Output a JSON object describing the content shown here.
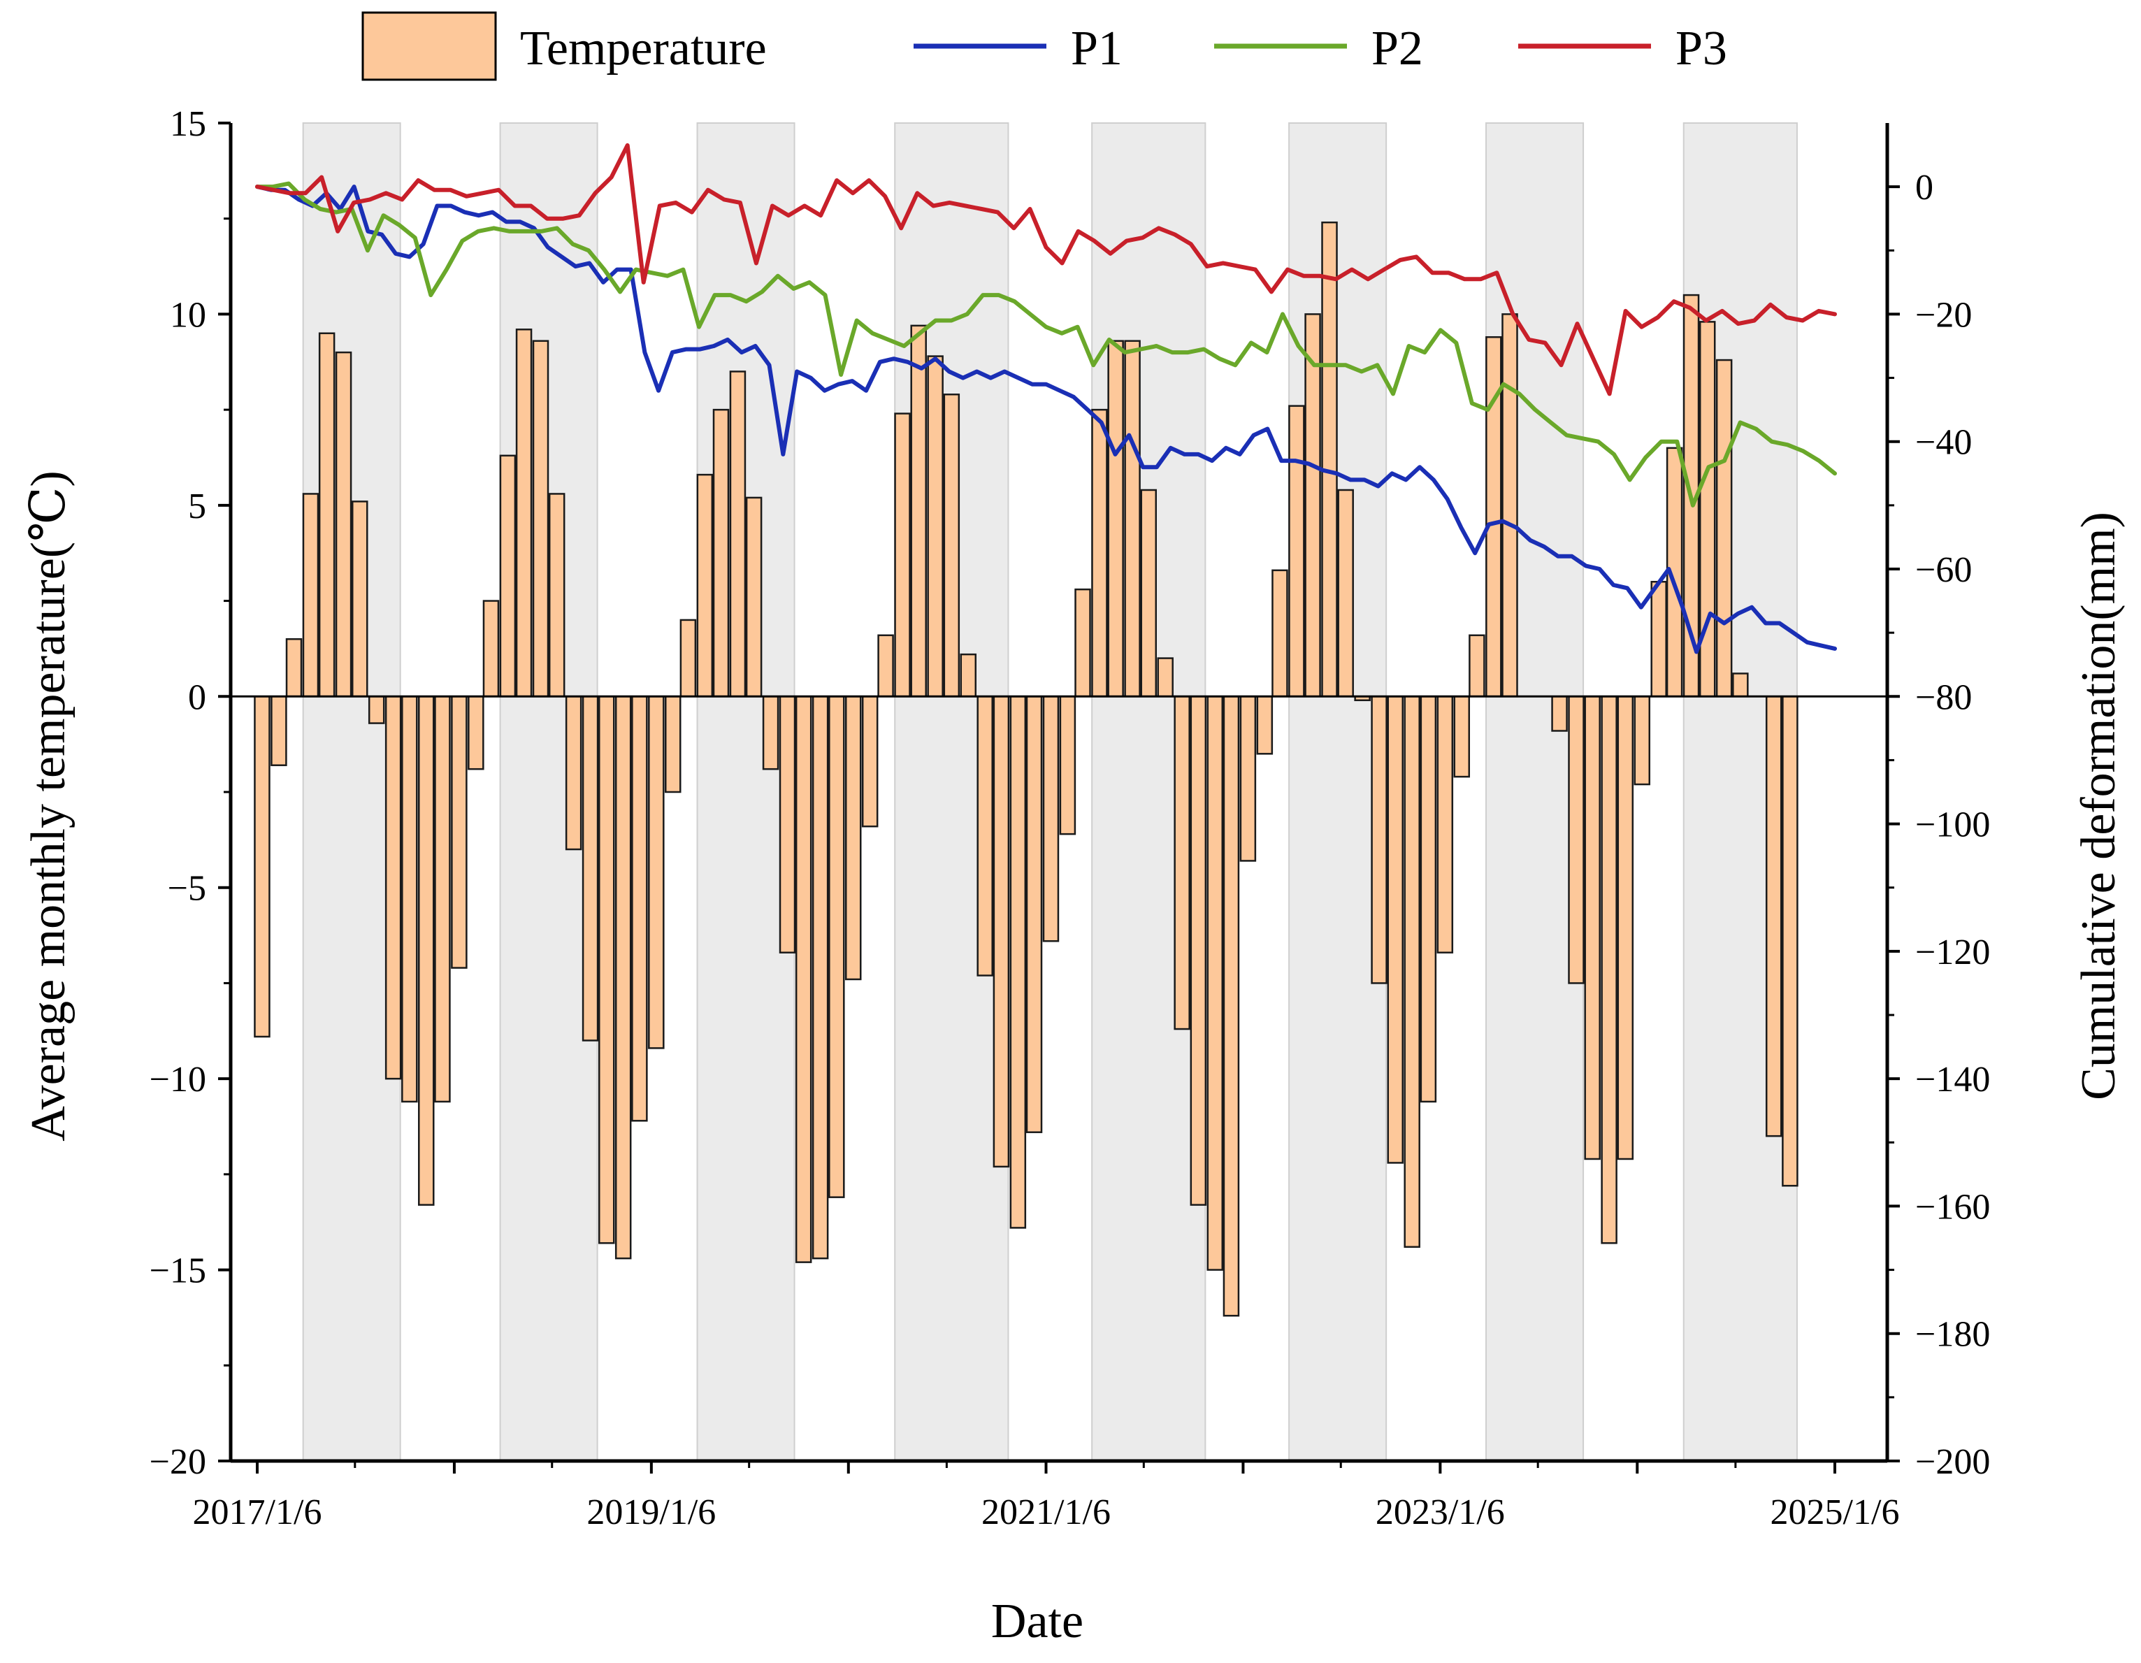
{
  "chart_data": {
    "type": "bar+line",
    "title": "",
    "xlabel": "Date",
    "ylabel_left": "Average monthly temperature(℃)",
    "ylabel_right": "Cumulative deformation(mm)",
    "ylim_left": [
      -20,
      15
    ],
    "ylim_right": [
      -200,
      10
    ],
    "yticks_left": [
      15,
      10,
      5,
      0,
      -5,
      -10,
      -15,
      -20
    ],
    "yticks_right": [
      0,
      -20,
      -40,
      -60,
      -80,
      -100,
      -120,
      -140,
      -160,
      -180,
      -200
    ],
    "x_start": "2017-01-06",
    "x_end": "2025-01-06",
    "x_tick_labels": [
      "2017/1/6",
      "2019/1/6",
      "2021/1/6",
      "2023/1/6",
      "2025/1/6"
    ],
    "warm_season_bands": [
      [
        "2017-04",
        "2017-09"
      ],
      [
        "2018-04",
        "2018-09"
      ],
      [
        "2019-04",
        "2019-09"
      ],
      [
        "2020-04",
        "2020-10"
      ],
      [
        "2021-04",
        "2021-10"
      ],
      [
        "2022-04",
        "2022-09"
      ],
      [
        "2023-04",
        "2023-09"
      ],
      [
        "2024-04",
        "2024-10"
      ]
    ],
    "legend": [
      "Temperature",
      "P1",
      "P2",
      "P3"
    ],
    "legend_position": "top",
    "temperature_series": {
      "name": "Temperature",
      "months": [
        "2017-01",
        "2017-02",
        "2017-03",
        "2017-04",
        "2017-05",
        "2017-06",
        "2017-07",
        "2017-08",
        "2017-09",
        "2017-10",
        "2017-11",
        "2017-12",
        "2018-01",
        "2018-02",
        "2018-03",
        "2018-04",
        "2018-05",
        "2018-06",
        "2018-07",
        "2018-08",
        "2018-09",
        "2018-10",
        "2018-11",
        "2018-12",
        "2019-01",
        "2019-02",
        "2019-03",
        "2019-04",
        "2019-05",
        "2019-06",
        "2019-07",
        "2019-08",
        "2019-09",
        "2019-10",
        "2019-11",
        "2019-12",
        "2020-01",
        "2020-02",
        "2020-03",
        "2020-04",
        "2020-05",
        "2020-06",
        "2020-07",
        "2020-08",
        "2020-09",
        "2020-10",
        "2020-11",
        "2020-12",
        "2021-01",
        "2021-02",
        "2021-03",
        "2021-04",
        "2021-05",
        "2021-06",
        "2021-07",
        "2021-08",
        "2021-09",
        "2021-10",
        "2021-11",
        "2021-12",
        "2022-01",
        "2022-02",
        "2022-03",
        "2022-04",
        "2022-05",
        "2022-06",
        "2022-07",
        "2022-08",
        "2022-09",
        "2022-10",
        "2022-11",
        "2022-12",
        "2023-01",
        "2023-02",
        "2023-03",
        "2023-04",
        "2023-05",
        "2023-06",
        "2023-07",
        "2023-08",
        "2023-09",
        "2023-10",
        "2023-11",
        "2023-12",
        "2024-01",
        "2024-02",
        "2024-03",
        "2024-04",
        "2024-05",
        "2024-06",
        "2024-07",
        "2024-08",
        "2024-09",
        "2024-10",
        "2024-11",
        "2024-12"
      ],
      "values": [
        -8.9,
        -1.8,
        1.5,
        5.3,
        9.5,
        9.0,
        5.1,
        -0.7,
        -10.0,
        -10.6,
        -13.3,
        -10.6,
        -7.1,
        -1.9,
        2.5,
        6.3,
        9.6,
        9.3,
        5.3,
        -4.0,
        -9.0,
        -14.3,
        -14.7,
        -11.1,
        -9.2,
        -2.5,
        2.0,
        5.8,
        7.5,
        8.5,
        5.2,
        -1.9,
        -6.7,
        -14.8,
        -14.7,
        -13.1,
        -7.4,
        -3.4,
        1.6,
        7.4,
        9.7,
        8.9,
        7.9,
        1.1,
        -7.3,
        -12.3,
        -13.9,
        -11.4,
        -6.4,
        -3.6,
        2.8,
        7.5,
        9.3,
        9.3,
        5.4,
        1.0,
        -8.7,
        -13.3,
        -15.0,
        -16.2,
        -4.3,
        -1.5,
        3.3,
        7.6,
        10.0,
        12.4,
        5.4,
        -0.1,
        -7.5,
        -12.2,
        -14.4,
        -10.6,
        -6.7,
        -2.1,
        1.6,
        9.4,
        10.0,
        null,
        null,
        -0.9,
        -7.5,
        -12.1,
        -14.3,
        -12.1,
        -2.3,
        3.0,
        6.5,
        10.5,
        9.8,
        8.8,
        0.6,
        null,
        -11.5,
        -12.8,
        null,
        null
      ]
    },
    "deformation_series": [
      {
        "name": "P1",
        "color": "#1a2fb5",
        "values": [
          0,
          -0.5,
          -0.5,
          -2,
          -3,
          -1,
          -3.5,
          0,
          -7,
          -7.5,
          -10.5,
          -11,
          -9,
          -3,
          -3,
          -4,
          -4.5,
          -4,
          -5.5,
          -5.5,
          -6.5,
          -9.5,
          -11,
          -12.5,
          -12,
          -15,
          -13,
          -13,
          -26,
          -32,
          -26,
          -25.5,
          -25.5,
          -25,
          -24,
          -26,
          -25,
          -28,
          -42,
          -29,
          -30,
          -32,
          -31,
          -30.5,
          -32,
          -27.5,
          -27,
          -27.5,
          -28.5,
          -27,
          -29,
          -30,
          -29,
          -30,
          -29,
          -30,
          -31,
          -31,
          -32,
          -33,
          -35,
          -37,
          -42,
          -39,
          -44,
          -44,
          -41,
          -42,
          -42,
          -43,
          -41,
          -42,
          -39,
          -38,
          -43,
          -43,
          -43.5,
          -44.5,
          -45,
          -46,
          -46,
          -47,
          -45,
          -46,
          -44,
          -46,
          -49,
          -53.5,
          -57.5,
          -53,
          -52.5,
          -53.5,
          -55.5,
          -56.5,
          -58,
          -58,
          -59.5,
          -60,
          -62.5,
          -63,
          -66,
          -63,
          -60,
          -66,
          -73,
          -67,
          -68.5,
          -67,
          -66,
          -68.5,
          -68.5,
          -70,
          -71.5,
          -72,
          -72.5
        ]
      },
      {
        "name": "P2",
        "color": "#6aa82a",
        "values": [
          0,
          0,
          0.5,
          -2,
          -3.5,
          -4,
          -3.5,
          -10,
          -4.5,
          -6,
          -8,
          -17,
          -13,
          -8.5,
          -7,
          -6.5,
          -7,
          -7,
          -7,
          -6.5,
          -9,
          -10,
          -13,
          -16.5,
          -13,
          -13.5,
          -14,
          -13,
          -22,
          -17,
          -17,
          -18,
          -16.5,
          -14,
          -16,
          -15,
          -17,
          -29.5,
          -21,
          -23,
          -24,
          -25,
          -23,
          -21,
          -21,
          -20,
          -17,
          -17,
          -18,
          -20,
          -22,
          -23,
          -22,
          -28,
          -24,
          -26,
          -25.5,
          -25,
          -26,
          -26,
          -25.5,
          -27,
          -28,
          -24.5,
          -26,
          -20,
          -25,
          -28,
          -28,
          -28,
          -29,
          -28,
          -32.5,
          -25,
          -26,
          -22.5,
          -24.5,
          -34,
          -35,
          -31,
          -32.5,
          -35,
          -37,
          -39,
          -39.5,
          -40,
          -42,
          -46,
          -42.5,
          -40,
          -40,
          -50,
          -44,
          -43,
          -37,
          -38,
          -40,
          -40.5,
          -41.5,
          -43,
          -45
        ]
      },
      {
        "name": "P3",
        "color": "#c8202a",
        "values": [
          0,
          -0.5,
          -1,
          -1,
          1.5,
          -7,
          -2.5,
          -2,
          -1,
          -2,
          1,
          -0.5,
          -0.5,
          -1.5,
          -1,
          -0.5,
          -3,
          -3,
          -5,
          -5,
          -4.5,
          -1,
          1.5,
          6.5,
          -15,
          -3,
          -2.5,
          -4,
          -0.5,
          -2,
          -2.5,
          -12,
          -3,
          -4.5,
          -3,
          -4.5,
          1,
          -1,
          1,
          -1.5,
          -6.5,
          -1,
          -3,
          -2.5,
          -3,
          -3.5,
          -4,
          -6.5,
          -3.5,
          -9.5,
          -12,
          -7,
          -8.5,
          -10.5,
          -8.5,
          -8,
          -6.5,
          -7.5,
          -9,
          -12.5,
          -12,
          -12.5,
          -13,
          -16.5,
          -13,
          -14,
          -14,
          -14.5,
          -13,
          -14.5,
          -13,
          -11.5,
          -11,
          -13.5,
          -13.5,
          -14.5,
          -14.5,
          -13.5,
          -20,
          -24,
          -24.5,
          -28,
          -21.5,
          -27,
          -32.5,
          -19.5,
          -22,
          -20.5,
          -18,
          -19,
          -21,
          -19.5,
          -21.5,
          -21,
          -18.5,
          -20.5,
          -21,
          -19.5,
          -20
        ]
      }
    ]
  }
}
